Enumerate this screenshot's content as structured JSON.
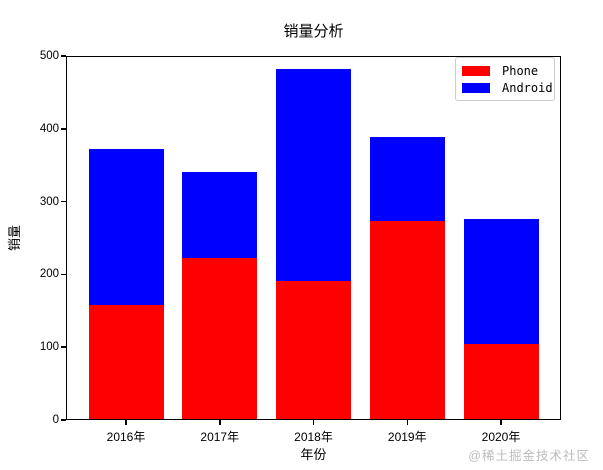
{
  "watermark": "@稀土掘金技术社区",
  "chart_data": {
    "type": "bar",
    "stacked": true,
    "title": "销量分析",
    "xlabel": "年份",
    "ylabel": "销量",
    "categories": [
      "2016年",
      "2017年",
      "2018年",
      "2019年",
      "2020年"
    ],
    "series": [
      {
        "name": "Phone",
        "color": "#ff0000",
        "values": [
          158,
          222,
          191,
          273,
          105
        ]
      },
      {
        "name": "Android",
        "color": "#0000ff",
        "values": [
          214,
          119,
          291,
          116,
          171
        ]
      }
    ],
    "totals": [
      372,
      341,
      482,
      389,
      276
    ],
    "ylim": [
      0,
      500
    ],
    "yticks": [
      0,
      100,
      200,
      300,
      400,
      500
    ],
    "legend_position": "upper right",
    "grid": false
  }
}
